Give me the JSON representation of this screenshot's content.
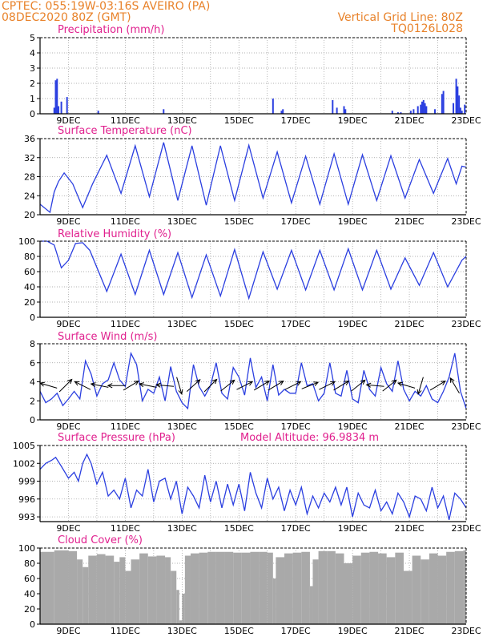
{
  "header": {
    "line1_left": "CPTEC:    055:19W-03:16S   AVEIRO (PA)",
    "line2_left": "08DEC2020 80Z (GMT)",
    "line2_right": "Vertical Grid Line: 80Z",
    "line3_right": "TQ0126L028"
  },
  "colors": {
    "header": "#e8822a",
    "title": "#e0208e",
    "series": "#2b3fe0",
    "cloud": "#a9a9a9",
    "frame": "#000000"
  },
  "chart_data": [
    {
      "type": "bar",
      "title": "Precipitation  (mm/h)",
      "xlim": [
        8.0,
        23.0
      ],
      "ylim": [
        0,
        5
      ],
      "yticks": [
        "0",
        "1",
        "2",
        "3",
        "4",
        "5"
      ],
      "xticks": [
        "9DEC",
        "11DEC",
        "13DEC",
        "15DEC",
        "17DEC",
        "19DEC",
        "21DEC",
        "23DEC"
      ],
      "grid": "dotted",
      "x": [
        8.5,
        8.55,
        8.6,
        8.65,
        8.75,
        8.95,
        10.05,
        12.35,
        16.2,
        16.5,
        16.55,
        18.3,
        18.45,
        18.7,
        18.75,
        20.4,
        20.6,
        20.7,
        21.05,
        21.15,
        21.3,
        21.4,
        21.45,
        21.5,
        21.55,
        21.6,
        21.9,
        22.15,
        22.2,
        22.55,
        22.65,
        22.7,
        22.75,
        22.8,
        22.85,
        22.95
      ],
      "values": [
        0.4,
        2.2,
        2.3,
        0.5,
        0.8,
        1.1,
        0.2,
        0.3,
        1.0,
        0.2,
        0.3,
        0.9,
        0.4,
        0.5,
        0.3,
        0.2,
        0.1,
        0.1,
        0.2,
        0.3,
        0.5,
        0.6,
        0.8,
        0.9,
        0.7,
        0.5,
        0.3,
        1.3,
        1.5,
        0.7,
        2.3,
        1.8,
        1.2,
        0.4,
        0.2,
        0.6
      ]
    },
    {
      "type": "line",
      "title": "Surface Temperature  (nC)",
      "xlim": [
        8.0,
        23.0
      ],
      "ylim": [
        20,
        36
      ],
      "yticks": [
        "20",
        "24",
        "28",
        "32",
        "36"
      ],
      "xticks": [
        "9DEC",
        "11DEC",
        "13DEC",
        "15DEC",
        "17DEC",
        "19DEC",
        "21DEC",
        "23DEC"
      ],
      "grid": "dotted",
      "x": [
        8.0,
        8.35,
        8.5,
        8.65,
        8.85,
        9.15,
        9.5,
        9.85,
        10.35,
        10.85,
        11.35,
        11.85,
        12.35,
        12.85,
        13.35,
        13.85,
        14.35,
        14.85,
        15.35,
        15.85,
        16.35,
        16.85,
        17.35,
        17.85,
        18.35,
        18.85,
        19.35,
        19.85,
        20.35,
        20.85,
        21.35,
        21.85,
        22.35,
        22.65,
        22.85,
        23.0
      ],
      "values": [
        22.2,
        20.5,
        24.8,
        27.0,
        28.8,
        26.5,
        21.5,
        26.5,
        32.5,
        24.5,
        34.5,
        23.8,
        35.2,
        23.0,
        34.5,
        22.0,
        34.5,
        23.0,
        34.6,
        23.5,
        33.2,
        22.5,
        32.3,
        22.2,
        32.8,
        22.2,
        32.6,
        23.0,
        32.4,
        23.5,
        31.6,
        24.5,
        31.8,
        26.5,
        30.2,
        30.0
      ]
    },
    {
      "type": "line",
      "title": "Relative Humidity  (%)",
      "xlim": [
        8.0,
        23.0
      ],
      "ylim": [
        0,
        100
      ],
      "yticks": [
        "0",
        "20",
        "40",
        "60",
        "80",
        "100"
      ],
      "xticks": [
        "9DEC",
        "11DEC",
        "13DEC",
        "15DEC",
        "17DEC",
        "19DEC",
        "21DEC",
        "23DEC"
      ],
      "grid": "dotted",
      "x": [
        8.0,
        8.25,
        8.5,
        8.75,
        9.0,
        9.25,
        9.5,
        9.75,
        10.35,
        10.85,
        11.35,
        11.85,
        12.35,
        12.85,
        13.35,
        13.85,
        14.35,
        14.85,
        15.35,
        15.85,
        16.35,
        16.85,
        17.35,
        17.85,
        18.35,
        18.85,
        19.35,
        19.85,
        20.35,
        20.85,
        21.35,
        21.85,
        22.35,
        22.85,
        23.0
      ],
      "values": [
        100,
        100,
        95,
        65,
        75,
        97,
        98,
        88,
        34,
        83,
        30,
        88,
        30,
        85,
        26,
        82,
        28,
        89,
        25,
        86,
        37,
        88,
        36,
        88,
        36,
        90,
        36,
        88,
        37,
        78,
        42,
        85,
        40,
        75,
        80
      ]
    },
    {
      "type": "line",
      "title": "Surface Wind  (m/s)",
      "xlim": [
        8.0,
        23.0
      ],
      "ylim": [
        0,
        8
      ],
      "yticks": [
        "0",
        "2",
        "4",
        "6",
        "8"
      ],
      "xticks": [
        "9DEC",
        "11DEC",
        "13DEC",
        "15DEC",
        "17DEC",
        "19DEC",
        "21DEC",
        "23DEC"
      ],
      "grid": "dotted",
      "x": [
        8.0,
        8.2,
        8.4,
        8.6,
        8.8,
        9.0,
        9.2,
        9.4,
        9.6,
        9.8,
        10.0,
        10.2,
        10.4,
        10.6,
        10.8,
        11.0,
        11.2,
        11.4,
        11.6,
        11.8,
        12.0,
        12.2,
        12.4,
        12.6,
        12.8,
        13.0,
        13.2,
        13.4,
        13.6,
        13.8,
        14.0,
        14.2,
        14.4,
        14.6,
        14.8,
        15.0,
        15.2,
        15.4,
        15.6,
        15.8,
        16.0,
        16.2,
        16.4,
        16.6,
        16.8,
        17.0,
        17.2,
        17.4,
        17.6,
        17.8,
        18.0,
        18.2,
        18.4,
        18.6,
        18.8,
        19.0,
        19.2,
        19.4,
        19.6,
        19.8,
        20.0,
        20.2,
        20.4,
        20.6,
        20.8,
        21.0,
        21.2,
        21.4,
        21.6,
        21.8,
        22.0,
        22.2,
        22.4,
        22.6,
        22.8,
        23.0
      ],
      "values": [
        3.0,
        1.8,
        2.2,
        2.8,
        1.5,
        2.2,
        3.0,
        2.2,
        6.2,
        4.8,
        2.5,
        3.8,
        4.2,
        6.0,
        4.2,
        3.5,
        7.0,
        5.8,
        2.0,
        3.2,
        2.8,
        4.5,
        2.0,
        5.6,
        3.0,
        1.8,
        1.2,
        5.8,
        3.5,
        2.5,
        3.6,
        6.0,
        2.8,
        2.2,
        5.5,
        4.5,
        2.6,
        6.5,
        3.4,
        4.5,
        2.0,
        5.8,
        2.6,
        3.2,
        2.8,
        2.8,
        6.0,
        3.6,
        3.8,
        2.0,
        2.8,
        6.0,
        2.8,
        2.5,
        5.2,
        2.2,
        1.8,
        5.2,
        3.2,
        2.5,
        5.5,
        3.8,
        3.0,
        6.2,
        3.2,
        2.0,
        3.0,
        2.5,
        3.6,
        2.2,
        1.8,
        3.0,
        4.5,
        7.0,
        3.0,
        1.2
      ],
      "wind_arrows": [
        {
          "x": 8.3,
          "dir_x": -1.0,
          "dir_y": 0.3
        },
        {
          "x": 8.9,
          "dir_x": 0.8,
          "dir_y": 0.8
        },
        {
          "x": 9.5,
          "dir_x": -1.0,
          "dir_y": 0.5
        },
        {
          "x": 10.1,
          "dir_x": -1.0,
          "dir_y": 0.2
        },
        {
          "x": 10.7,
          "dir_x": -1.0,
          "dir_y": 0.0
        },
        {
          "x": 11.2,
          "dir_x": 1.0,
          "dir_y": 0.6
        },
        {
          "x": 11.8,
          "dir_x": -1.0,
          "dir_y": 0.2
        },
        {
          "x": 12.4,
          "dir_x": -1.0,
          "dir_y": 0.1
        },
        {
          "x": 12.9,
          "dir_x": 0.3,
          "dir_y": -1.0
        },
        {
          "x": 13.4,
          "dir_x": 1.0,
          "dir_y": 0.9
        },
        {
          "x": 14.0,
          "dir_x": 1.0,
          "dir_y": 1.0
        },
        {
          "x": 14.6,
          "dir_x": 1.0,
          "dir_y": 0.8
        },
        {
          "x": 15.2,
          "dir_x": 1.0,
          "dir_y": 0.5
        },
        {
          "x": 15.8,
          "dir_x": 1.0,
          "dir_y": 0.6
        },
        {
          "x": 16.3,
          "dir_x": 1.0,
          "dir_y": 0.6
        },
        {
          "x": 16.9,
          "dir_x": 1.0,
          "dir_y": 0.5
        },
        {
          "x": 17.5,
          "dir_x": 1.0,
          "dir_y": 0.4
        },
        {
          "x": 18.1,
          "dir_x": 1.0,
          "dir_y": 0.5
        },
        {
          "x": 18.6,
          "dir_x": 1.0,
          "dir_y": 0.6
        },
        {
          "x": 19.2,
          "dir_x": 1.0,
          "dir_y": 0.8
        },
        {
          "x": 19.8,
          "dir_x": -1.0,
          "dir_y": 0.1
        },
        {
          "x": 20.3,
          "dir_x": 1.0,
          "dir_y": 0.8
        },
        {
          "x": 20.9,
          "dir_x": -1.0,
          "dir_y": 0.3
        },
        {
          "x": 21.4,
          "dir_x": -0.3,
          "dir_y": -1.0
        },
        {
          "x": 22.0,
          "dir_x": 1.0,
          "dir_y": 0.6
        },
        {
          "x": 22.6,
          "dir_x": -0.6,
          "dir_y": 1.0
        }
      ]
    },
    {
      "type": "line",
      "title": "Surface Pressure  (hPa)",
      "annotation": "Model Altitude:  96.9834  m",
      "xlim": [
        8.0,
        23.0
      ],
      "ylim": [
        992.2,
        1005
      ],
      "yticks": [
        "993",
        "996",
        "999",
        "1002",
        "1005"
      ],
      "ytick_values": [
        993,
        996,
        999,
        1002,
        1005
      ],
      "xticks": [
        "9DEC",
        "11DEC",
        "13DEC",
        "15DEC",
        "17DEC",
        "19DEC",
        "21DEC",
        "23DEC"
      ],
      "grid": "dotted",
      "x": [
        8.0,
        8.2,
        8.4,
        8.55,
        8.75,
        9.0,
        9.2,
        9.35,
        9.5,
        9.65,
        9.8,
        10.0,
        10.2,
        10.4,
        10.6,
        10.8,
        11.0,
        11.2,
        11.4,
        11.6,
        11.8,
        12.0,
        12.2,
        12.4,
        12.6,
        12.8,
        13.0,
        13.2,
        13.4,
        13.6,
        13.8,
        14.0,
        14.2,
        14.4,
        14.6,
        14.8,
        15.0,
        15.2,
        15.4,
        15.6,
        15.8,
        16.0,
        16.2,
        16.4,
        16.6,
        16.8,
        17.0,
        17.2,
        17.4,
        17.6,
        17.8,
        18.0,
        18.2,
        18.4,
        18.6,
        18.8,
        19.0,
        19.2,
        19.4,
        19.6,
        19.8,
        20.0,
        20.2,
        20.4,
        20.6,
        20.8,
        21.0,
        21.2,
        21.4,
        21.6,
        21.8,
        22.0,
        22.2,
        22.4,
        22.6,
        22.8,
        23.0
      ],
      "values": [
        1001.0,
        1002.0,
        1002.5,
        1003.0,
        1001.5,
        999.5,
        1000.5,
        999.0,
        1002.0,
        1003.5,
        1002.0,
        998.5,
        1000.5,
        996.5,
        997.5,
        996.0,
        999.5,
        994.5,
        997.5,
        996.5,
        1001.0,
        995.5,
        999.0,
        999.5,
        996.0,
        999.0,
        993.5,
        998.0,
        996.5,
        994.5,
        1000.0,
        995.5,
        999.0,
        994.5,
        998.5,
        995.0,
        998.5,
        994.0,
        1000.5,
        997.0,
        994.5,
        999.5,
        996.0,
        998.0,
        994.0,
        997.5,
        995.0,
        998.0,
        993.5,
        996.5,
        994.5,
        997.0,
        995.5,
        998.0,
        995.0,
        998.0,
        993.0,
        997.0,
        995.0,
        994.5,
        997.5,
        994.0,
        995.5,
        993.5,
        997.0,
        995.5,
        993.0,
        996.5,
        996.0,
        994.0,
        998.0,
        994.5,
        996.5,
        992.5,
        997.0,
        996.0,
        994.5
      ]
    },
    {
      "type": "bar",
      "title": "Cloud Cover  (%)",
      "xlim": [
        8.0,
        23.0
      ],
      "ylim": [
        0,
        100
      ],
      "yticks": [
        "0",
        "20",
        "40",
        "60",
        "80",
        "100"
      ],
      "xticks": [
        "9DEC",
        "11DEC",
        "13DEC",
        "15DEC",
        "17DEC",
        "19DEC",
        "21DEC",
        "23DEC"
      ],
      "grid": "dotted",
      "x": [
        8.0,
        8.5,
        9.0,
        9.3,
        9.5,
        9.7,
        10.0,
        10.3,
        10.6,
        10.8,
        11.0,
        11.2,
        11.5,
        11.8,
        12.1,
        12.4,
        12.6,
        12.8,
        12.9,
        13.0,
        13.1,
        13.3,
        13.6,
        13.9,
        14.2,
        14.5,
        14.8,
        15.1,
        15.4,
        15.7,
        16.0,
        16.2,
        16.3,
        16.6,
        16.9,
        17.2,
        17.5,
        17.6,
        17.8,
        18.1,
        18.4,
        18.7,
        19.0,
        19.3,
        19.6,
        19.9,
        20.2,
        20.5,
        20.8,
        21.1,
        21.4,
        21.7,
        22.0,
        22.3,
        22.6,
        22.9
      ],
      "values": [
        95,
        97,
        96,
        85,
        75,
        90,
        92,
        90,
        82,
        88,
        70,
        85,
        93,
        89,
        90,
        88,
        70,
        45,
        5,
        40,
        90,
        93,
        94,
        95,
        95,
        95,
        94,
        94,
        95,
        95,
        94,
        60,
        88,
        93,
        94,
        95,
        50,
        85,
        96,
        96,
        93,
        80,
        90,
        94,
        95,
        93,
        88,
        94,
        70,
        90,
        85,
        93,
        90,
        95,
        96,
        97
      ]
    }
  ]
}
